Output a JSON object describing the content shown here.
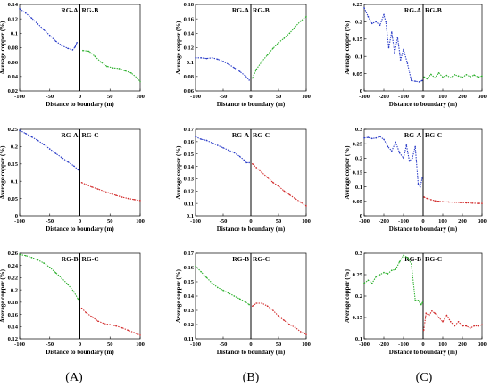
{
  "figure": {
    "column_labels": [
      "(A)",
      "(B)",
      "(C)"
    ],
    "colors": {
      "blue": "#2a3cc8",
      "green": "#2db02d",
      "red": "#d22a2a"
    }
  },
  "chart_data": [
    {
      "type": "line",
      "row": 0,
      "col": 0,
      "xlabel": "Distance to boundary (m)",
      "ylabel": "Average copper (%)",
      "region_left": "RG-A",
      "region_right": "RG-B",
      "xlim": [
        -100,
        100
      ],
      "ylim": [
        0.02,
        0.14
      ],
      "xticks": [
        -100,
        -50,
        0,
        50,
        100
      ],
      "yticks": [
        0.02,
        0.04,
        0.06,
        0.08,
        0.1,
        0.12,
        0.14
      ],
      "ytick_labels": [
        "0.02",
        "0.04",
        "0.06",
        "0.08",
        "0.1",
        "0.12",
        "0.14"
      ],
      "series": [
        {
          "side": "left",
          "color": "blue",
          "x": [
            -100,
            -90,
            -80,
            -70,
            -60,
            -50,
            -40,
            -30,
            -20,
            -12,
            -8,
            -5
          ],
          "y": [
            0.134,
            0.128,
            0.121,
            0.113,
            0.105,
            0.097,
            0.089,
            0.083,
            0.079,
            0.077,
            0.081,
            0.087
          ]
        },
        {
          "side": "right",
          "color": "green",
          "x": [
            5,
            15,
            25,
            35,
            45,
            55,
            65,
            75,
            85,
            95,
            100
          ],
          "y": [
            0.076,
            0.075,
            0.068,
            0.06,
            0.054,
            0.052,
            0.051,
            0.048,
            0.045,
            0.038,
            0.033
          ]
        }
      ]
    },
    {
      "type": "line",
      "row": 0,
      "col": 1,
      "xlabel": "Distance to boundary (m)",
      "ylabel": "Average copper (%)",
      "region_left": "RG-A",
      "region_right": "RG-B",
      "xlim": [
        -100,
        100
      ],
      "ylim": [
        0.06,
        0.18
      ],
      "xticks": [
        -100,
        -50,
        0,
        50,
        100
      ],
      "yticks": [
        0.06,
        0.08,
        0.1,
        0.12,
        0.14,
        0.16,
        0.18
      ],
      "ytick_labels": [
        "0.06",
        "0.08",
        "0.1",
        "0.12",
        "0.14",
        "0.16",
        "0.18"
      ],
      "series": [
        {
          "side": "left",
          "color": "blue",
          "x": [
            -100,
            -90,
            -80,
            -70,
            -60,
            -50,
            -40,
            -30,
            -20,
            -10,
            -3
          ],
          "y": [
            0.106,
            0.106,
            0.105,
            0.106,
            0.104,
            0.101,
            0.097,
            0.092,
            0.087,
            0.081,
            0.075
          ]
        },
        {
          "side": "right",
          "color": "green",
          "x": [
            3,
            10,
            20,
            30,
            40,
            50,
            60,
            70,
            80,
            90,
            100
          ],
          "y": [
            0.078,
            0.09,
            0.101,
            0.11,
            0.119,
            0.127,
            0.133,
            0.14,
            0.149,
            0.157,
            0.163
          ]
        }
      ]
    },
    {
      "type": "line",
      "row": 0,
      "col": 2,
      "xlabel": "Distance to boundary (m)",
      "ylabel": "Average copper (%)",
      "region_left": "RG-A",
      "region_right": "RG-B",
      "xlim": [
        -300,
        300
      ],
      "ylim": [
        0,
        0.25
      ],
      "xticks": [
        -300,
        -200,
        -100,
        0,
        100,
        200,
        300
      ],
      "yticks": [
        0,
        0.05,
        0.1,
        0.15,
        0.2,
        0.25
      ],
      "ytick_labels": [
        "0",
        "0.05",
        "0.1",
        "0.15",
        "0.2",
        "0.25"
      ],
      "series": [
        {
          "side": "left",
          "color": "blue",
          "x": [
            -300,
            -280,
            -260,
            -240,
            -220,
            -200,
            -190,
            -175,
            -160,
            -145,
            -130,
            -115,
            -100,
            -80,
            -60,
            -40,
            -20,
            -5
          ],
          "y": [
            0.24,
            0.215,
            0.195,
            0.2,
            0.19,
            0.22,
            0.2,
            0.125,
            0.17,
            0.11,
            0.155,
            0.09,
            0.12,
            0.08,
            0.03,
            0.028,
            0.026,
            0.03
          ]
        },
        {
          "side": "right",
          "color": "green",
          "x": [
            5,
            20,
            40,
            60,
            80,
            100,
            120,
            140,
            160,
            180,
            200,
            220,
            240,
            260,
            280,
            300
          ],
          "y": [
            0.04,
            0.035,
            0.048,
            0.038,
            0.052,
            0.04,
            0.045,
            0.038,
            0.047,
            0.043,
            0.039,
            0.047,
            0.041,
            0.046,
            0.04,
            0.043
          ]
        }
      ]
    },
    {
      "type": "line",
      "row": 1,
      "col": 0,
      "xlabel": "Distance to boundary (m)",
      "ylabel": "Average copper (%)",
      "region_left": "RG-A",
      "region_right": "RG-C",
      "xlim": [
        -100,
        100
      ],
      "ylim": [
        0,
        0.25
      ],
      "xticks": [
        -100,
        -50,
        0,
        50,
        100
      ],
      "yticks": [
        0,
        0.05,
        0.1,
        0.15,
        0.2,
        0.25
      ],
      "ytick_labels": [
        "0",
        "0.05",
        "0.1",
        "0.15",
        "0.2",
        "0.25"
      ],
      "series": [
        {
          "side": "left",
          "color": "blue",
          "x": [
            -100,
            -90,
            -80,
            -70,
            -60,
            -50,
            -40,
            -30,
            -20,
            -10,
            -3
          ],
          "y": [
            0.247,
            0.238,
            0.228,
            0.218,
            0.206,
            0.193,
            0.18,
            0.168,
            0.156,
            0.144,
            0.133
          ]
        },
        {
          "side": "right",
          "color": "red",
          "x": [
            3,
            10,
            20,
            30,
            40,
            50,
            60,
            70,
            80,
            90,
            100
          ],
          "y": [
            0.096,
            0.09,
            0.083,
            0.077,
            0.071,
            0.065,
            0.059,
            0.054,
            0.05,
            0.047,
            0.044
          ]
        }
      ]
    },
    {
      "type": "line",
      "row": 1,
      "col": 1,
      "xlabel": "Distance to boundary (m)",
      "ylabel": "Average copper (%)",
      "region_left": "RG-A",
      "region_right": "RG-C",
      "xlim": [
        -100,
        100
      ],
      "ylim": [
        0.1,
        0.17
      ],
      "xticks": [
        -100,
        -50,
        0,
        50,
        100
      ],
      "yticks": [
        0.1,
        0.11,
        0.12,
        0.13,
        0.14,
        0.15,
        0.16,
        0.17
      ],
      "ytick_labels": [
        "0.1",
        "0.11",
        "0.12",
        "0.13",
        "0.14",
        "0.15",
        "0.16",
        "0.17"
      ],
      "series": [
        {
          "side": "left",
          "color": "blue",
          "x": [
            -100,
            -90,
            -80,
            -70,
            -60,
            -50,
            -40,
            -30,
            -20,
            -12,
            -8,
            -3
          ],
          "y": [
            0.164,
            0.162,
            0.161,
            0.159,
            0.157,
            0.155,
            0.153,
            0.151,
            0.148,
            0.145,
            0.143,
            0.143
          ]
        },
        {
          "side": "right",
          "color": "red",
          "x": [
            3,
            10,
            20,
            30,
            40,
            50,
            60,
            70,
            80,
            90,
            100
          ],
          "y": [
            0.142,
            0.139,
            0.135,
            0.131,
            0.127,
            0.124,
            0.12,
            0.117,
            0.114,
            0.111,
            0.108
          ]
        }
      ]
    },
    {
      "type": "line",
      "row": 1,
      "col": 2,
      "xlabel": "Distance to boundary (m)",
      "ylabel": "Average copper (%)",
      "region_left": "RG-A",
      "region_right": "RG-C",
      "xlim": [
        -300,
        300
      ],
      "ylim": [
        0,
        0.3
      ],
      "xticks": [
        -300,
        -200,
        -100,
        0,
        100,
        200,
        300
      ],
      "yticks": [
        0,
        0.05,
        0.1,
        0.15,
        0.2,
        0.25,
        0.3
      ],
      "ytick_labels": [
        "0",
        "0.05",
        "0.1",
        "0.15",
        "0.2",
        "0.25",
        "0.3"
      ],
      "series": [
        {
          "side": "left",
          "color": "blue",
          "x": [
            -300,
            -280,
            -260,
            -240,
            -220,
            -200,
            -180,
            -160,
            -140,
            -120,
            -100,
            -85,
            -70,
            -55,
            -40,
            -25,
            -15,
            -5
          ],
          "y": [
            0.27,
            0.272,
            0.268,
            0.27,
            0.275,
            0.265,
            0.24,
            0.225,
            0.255,
            0.218,
            0.2,
            0.245,
            0.19,
            0.2,
            0.24,
            0.11,
            0.1,
            0.13
          ]
        },
        {
          "side": "right",
          "color": "red",
          "x": [
            5,
            20,
            40,
            60,
            80,
            100,
            130,
            160,
            190,
            220,
            250,
            280,
            300
          ],
          "y": [
            0.065,
            0.06,
            0.056,
            0.052,
            0.05,
            0.049,
            0.048,
            0.047,
            0.046,
            0.045,
            0.044,
            0.043,
            0.043
          ]
        }
      ]
    },
    {
      "type": "line",
      "row": 2,
      "col": 0,
      "xlabel": "Distance to boundary (m)",
      "ylabel": "Average copper (%)",
      "region_left": "RG-B",
      "region_right": "RG-C",
      "xlim": [
        -100,
        100
      ],
      "ylim": [
        0.12,
        0.26
      ],
      "xticks": [
        -100,
        -50,
        0,
        50,
        100
      ],
      "yticks": [
        0.12,
        0.14,
        0.16,
        0.18,
        0.2,
        0.22,
        0.24,
        0.26
      ],
      "ytick_labels": [
        "0.12",
        "0.14",
        "0.16",
        "0.18",
        "0.2",
        "0.22",
        "0.24",
        "0.26"
      ],
      "series": [
        {
          "side": "left",
          "color": "green",
          "x": [
            -100,
            -90,
            -80,
            -70,
            -60,
            -50,
            -40,
            -30,
            -20,
            -10,
            -3
          ],
          "y": [
            0.258,
            0.256,
            0.253,
            0.249,
            0.244,
            0.237,
            0.228,
            0.219,
            0.209,
            0.197,
            0.185
          ]
        },
        {
          "side": "right",
          "color": "red",
          "x": [
            3,
            10,
            20,
            30,
            40,
            50,
            60,
            70,
            80,
            90,
            100
          ],
          "y": [
            0.17,
            0.163,
            0.156,
            0.149,
            0.145,
            0.143,
            0.141,
            0.138,
            0.134,
            0.13,
            0.126
          ]
        }
      ]
    },
    {
      "type": "line",
      "row": 2,
      "col": 1,
      "xlabel": "Distance to boundary (m)",
      "ylabel": "Average copper (%)",
      "region_left": "RG-B",
      "region_right": "RG-C",
      "xlim": [
        -100,
        100
      ],
      "ylim": [
        0.11,
        0.17
      ],
      "xticks": [
        -100,
        -50,
        0,
        50,
        100
      ],
      "yticks": [
        0.11,
        0.12,
        0.13,
        0.14,
        0.15,
        0.16,
        0.17
      ],
      "ytick_labels": [
        "0.11",
        "0.12",
        "0.13",
        "0.14",
        "0.15",
        "0.16",
        "0.17"
      ],
      "series": [
        {
          "side": "left",
          "color": "green",
          "x": [
            -100,
            -90,
            -80,
            -70,
            -60,
            -50,
            -40,
            -30,
            -20,
            -10,
            -3
          ],
          "y": [
            0.161,
            0.157,
            0.153,
            0.149,
            0.146,
            0.144,
            0.142,
            0.14,
            0.138,
            0.136,
            0.134
          ]
        },
        {
          "side": "right",
          "color": "red",
          "x": [
            3,
            10,
            20,
            30,
            40,
            50,
            60,
            70,
            80,
            90,
            100
          ],
          "y": [
            0.133,
            0.135,
            0.135,
            0.133,
            0.13,
            0.126,
            0.123,
            0.12,
            0.118,
            0.115,
            0.113
          ]
        }
      ]
    },
    {
      "type": "line",
      "row": 2,
      "col": 2,
      "xlabel": "Distance to boundary (m)",
      "ylabel": "Average copper (%)",
      "region_left": "RG-B",
      "region_right": "RG-C",
      "xlim": [
        -300,
        300
      ],
      "ylim": [
        0.1,
        0.3
      ],
      "xticks": [
        -300,
        -200,
        -100,
        0,
        100,
        200,
        300
      ],
      "yticks": [
        0.1,
        0.15,
        0.2,
        0.25,
        0.3
      ],
      "ytick_labels": [
        "0.1",
        "0.15",
        "0.2",
        "0.25",
        "0.3"
      ],
      "series": [
        {
          "side": "left",
          "color": "green",
          "x": [
            -300,
            -280,
            -260,
            -240,
            -220,
            -200,
            -180,
            -160,
            -140,
            -120,
            -100,
            -80,
            -60,
            -40,
            -25,
            -10,
            -3
          ],
          "y": [
            0.23,
            0.237,
            0.23,
            0.245,
            0.25,
            0.255,
            0.252,
            0.26,
            0.262,
            0.28,
            0.295,
            0.29,
            0.275,
            0.19,
            0.19,
            0.18,
            0.185
          ]
        },
        {
          "side": "right",
          "color": "red",
          "x": [
            3,
            15,
            30,
            45,
            60,
            80,
            100,
            120,
            140,
            160,
            180,
            200,
            220,
            240,
            260,
            280,
            300
          ],
          "y": [
            0.12,
            0.16,
            0.155,
            0.165,
            0.16,
            0.15,
            0.14,
            0.155,
            0.14,
            0.13,
            0.14,
            0.13,
            0.13,
            0.125,
            0.13,
            0.13,
            0.133
          ]
        }
      ]
    }
  ]
}
